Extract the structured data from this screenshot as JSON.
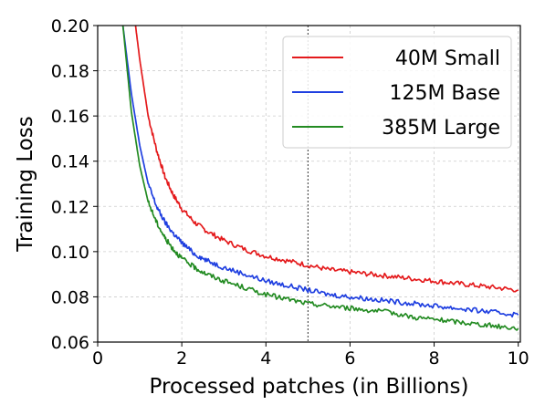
{
  "chart_data": {
    "type": "line",
    "title": "",
    "xlabel": "Processed patches (in Billions)",
    "ylabel": "Training Loss",
    "xlim": [
      0,
      10.05
    ],
    "ylim": [
      0.06,
      0.2
    ],
    "xticks": [
      0,
      2,
      4,
      6,
      8,
      10
    ],
    "yticks": [
      0.06,
      0.08,
      0.1,
      0.12,
      0.14,
      0.16,
      0.18,
      0.2
    ],
    "xtick_labels": [
      "0",
      "2",
      "4",
      "6",
      "8",
      "10"
    ],
    "ytick_labels": [
      "0.06",
      "0.08",
      "0.10",
      "0.12",
      "0.14",
      "0.16",
      "0.18",
      "0.20"
    ],
    "grid": true,
    "grid_style": "dashed",
    "legend_position": "upper-right",
    "vertical_marker": {
      "x": 5.0,
      "style": "dotted",
      "color": "#333333"
    },
    "series": [
      {
        "name": "40M Small",
        "color": "#e41a1c",
        "x": [
          0.9,
          1.0,
          1.2,
          1.4,
          1.6,
          1.8,
          2.0,
          2.3,
          2.6,
          3.0,
          3.5,
          4.0,
          4.5,
          5.0,
          5.5,
          6.0,
          6.5,
          7.0,
          7.5,
          8.0,
          8.5,
          9.0,
          9.5,
          10.0
        ],
        "values": [
          0.2,
          0.185,
          0.16,
          0.145,
          0.133,
          0.125,
          0.119,
          0.113,
          0.109,
          0.105,
          0.101,
          0.098,
          0.096,
          0.094,
          0.092,
          0.091,
          0.09,
          0.089,
          0.088,
          0.087,
          0.086,
          0.085,
          0.084,
          0.083
        ]
      },
      {
        "name": "125M Base",
        "color": "#1f3fe0",
        "x": [
          0.6,
          0.8,
          1.0,
          1.2,
          1.4,
          1.6,
          1.8,
          2.0,
          2.3,
          2.6,
          3.0,
          3.5,
          4.0,
          4.5,
          5.0,
          5.5,
          6.0,
          6.5,
          7.0,
          7.5,
          8.0,
          8.5,
          9.0,
          9.5,
          10.0
        ],
        "values": [
          0.2,
          0.17,
          0.147,
          0.13,
          0.12,
          0.113,
          0.108,
          0.104,
          0.099,
          0.096,
          0.093,
          0.09,
          0.087,
          0.085,
          0.083,
          0.081,
          0.08,
          0.079,
          0.078,
          0.077,
          0.076,
          0.075,
          0.074,
          0.073,
          0.072
        ]
      },
      {
        "name": "385M Large",
        "color": "#238b22",
        "x": [
          0.6,
          0.8,
          1.0,
          1.2,
          1.4,
          1.6,
          1.8,
          2.0,
          2.3,
          2.6,
          3.0,
          3.5,
          4.0,
          4.5,
          5.0,
          5.5,
          6.0,
          6.5,
          7.0,
          7.5,
          8.0,
          8.5,
          9.0,
          9.5,
          10.0
        ],
        "values": [
          0.2,
          0.162,
          0.138,
          0.122,
          0.113,
          0.106,
          0.101,
          0.097,
          0.093,
          0.09,
          0.087,
          0.084,
          0.081,
          0.079,
          0.077,
          0.076,
          0.075,
          0.074,
          0.073,
          0.071,
          0.07,
          0.069,
          0.068,
          0.067,
          0.066
        ]
      }
    ]
  }
}
